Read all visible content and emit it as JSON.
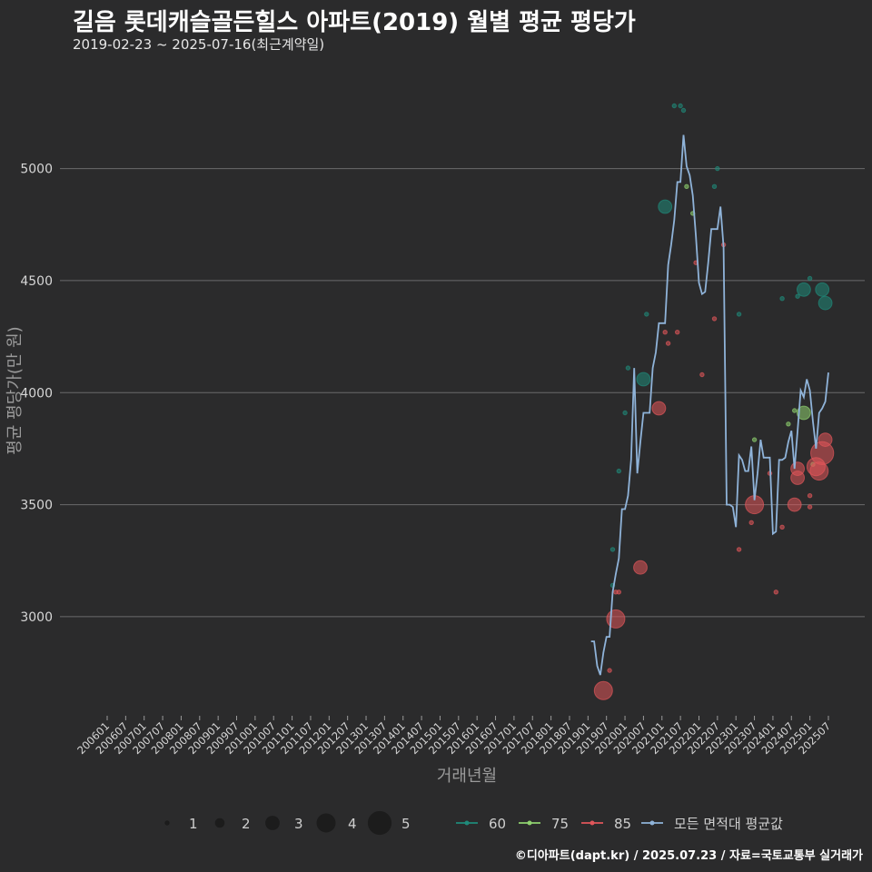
{
  "title": "길음 롯데캐슬골든힐스 아파트(2019) 월별 평균 평당가",
  "subtitle": "2019-02-23 ~ 2025-07-16(최근계약일)",
  "footer": "©디아파트(dapt.kr) / 2025.07.23 / 자료=국토교통부 실거래가",
  "colors": {
    "background": "#2b2b2c",
    "grid": "#6b6b6b",
    "area60": "#1f8a7a",
    "area75": "#8fd16f",
    "area85": "#e0565a",
    "avg": "#8fb3d9"
  },
  "chart_data": {
    "type": "line",
    "xlabel": "거래년월",
    "ylabel": "평균 평당가(만 원)",
    "ylim": [
      2570,
      5420
    ],
    "yticks": [
      3000,
      3500,
      4000,
      4500,
      5000
    ],
    "x_range": [
      "2006-01",
      "2025-07"
    ],
    "xticks": [
      "200601",
      "200607",
      "200701",
      "200707",
      "200801",
      "200807",
      "200901",
      "200907",
      "201001",
      "201007",
      "201101",
      "201107",
      "201201",
      "201207",
      "201301",
      "201307",
      "201401",
      "201407",
      "201501",
      "201507",
      "201601",
      "201607",
      "201701",
      "201707",
      "201801",
      "201807",
      "201901",
      "201907",
      "202001",
      "202007",
      "202101",
      "202107",
      "202201",
      "202207",
      "202301",
      "202307",
      "202401",
      "202407",
      "202501",
      "202507"
    ],
    "size_legend": [
      1,
      2,
      3,
      4,
      5
    ],
    "series": [
      {
        "name": "모든 면적대 평균값",
        "kind": "line",
        "points": [
          [
            "2019-02",
            2890
          ],
          [
            "2019-03",
            2890
          ],
          [
            "2019-04",
            2780
          ],
          [
            "2019-05",
            2740
          ],
          [
            "2019-06",
            2840
          ],
          [
            "2019-07",
            2910
          ],
          [
            "2019-08",
            2910
          ],
          [
            "2019-09",
            3110
          ],
          [
            "2019-10",
            3190
          ],
          [
            "2019-11",
            3260
          ],
          [
            "2019-12",
            3480
          ],
          [
            "2020-01",
            3480
          ],
          [
            "2020-02",
            3540
          ],
          [
            "2020-03",
            3700
          ],
          [
            "2020-04",
            4110
          ],
          [
            "2020-05",
            3640
          ],
          [
            "2020-06",
            3780
          ],
          [
            "2020-07",
            3910
          ],
          [
            "2020-08",
            3910
          ],
          [
            "2020-09",
            3910
          ],
          [
            "2020-10",
            4110
          ],
          [
            "2020-11",
            4180
          ],
          [
            "2020-12",
            4310
          ],
          [
            "2021-01",
            4310
          ],
          [
            "2021-02",
            4310
          ],
          [
            "2021-03",
            4570
          ],
          [
            "2021-04",
            4660
          ],
          [
            "2021-05",
            4770
          ],
          [
            "2021-06",
            4940
          ],
          [
            "2021-07",
            4940
          ],
          [
            "2021-08",
            5150
          ],
          [
            "2021-09",
            5010
          ],
          [
            "2021-10",
            4970
          ],
          [
            "2021-11",
            4880
          ],
          [
            "2021-12",
            4700
          ],
          [
            "2022-01",
            4490
          ],
          [
            "2022-02",
            4440
          ],
          [
            "2022-03",
            4450
          ],
          [
            "2022-04",
            4580
          ],
          [
            "2022-05",
            4730
          ],
          [
            "2022-06",
            4730
          ],
          [
            "2022-07",
            4730
          ],
          [
            "2022-08",
            4830
          ],
          [
            "2022-09",
            4650
          ],
          [
            "2022-10",
            3500
          ],
          [
            "2022-11",
            3500
          ],
          [
            "2022-12",
            3490
          ],
          [
            "2023-01",
            3400
          ],
          [
            "2023-02",
            3720
          ],
          [
            "2023-03",
            3700
          ],
          [
            "2023-04",
            3650
          ],
          [
            "2023-05",
            3650
          ],
          [
            "2023-06",
            3760
          ],
          [
            "2023-07",
            3520
          ],
          [
            "2023-08",
            3640
          ],
          [
            "2023-09",
            3790
          ],
          [
            "2023-10",
            3710
          ],
          [
            "2023-11",
            3710
          ],
          [
            "2023-12",
            3710
          ],
          [
            "2024-01",
            3370
          ],
          [
            "2024-02",
            3380
          ],
          [
            "2024-03",
            3700
          ],
          [
            "2024-04",
            3700
          ],
          [
            "2024-05",
            3710
          ],
          [
            "2024-06",
            3780
          ],
          [
            "2024-07",
            3830
          ],
          [
            "2024-08",
            3660
          ],
          [
            "2024-09",
            3830
          ],
          [
            "2024-10",
            4010
          ],
          [
            "2024-11",
            3980
          ],
          [
            "2024-12",
            4060
          ],
          [
            "2025-01",
            4010
          ],
          [
            "2025-02",
            3870
          ],
          [
            "2025-03",
            3750
          ],
          [
            "2025-04",
            3910
          ],
          [
            "2025-05",
            3930
          ],
          [
            "2025-06",
            3960
          ],
          [
            "2025-07",
            4090
          ]
        ]
      },
      {
        "name": "60",
        "kind": "scatter",
        "points": [
          [
            "2019-09",
            3300,
            1
          ],
          [
            "2019-09",
            3140,
            1
          ],
          [
            "2019-11",
            3650,
            1
          ],
          [
            "2020-01",
            3910,
            1
          ],
          [
            "2020-02",
            4110,
            1
          ],
          [
            "2020-07",
            4060,
            3
          ],
          [
            "2020-08",
            4350,
            1
          ],
          [
            "2021-02",
            4830,
            3
          ],
          [
            "2021-05",
            5280,
            1
          ],
          [
            "2021-07",
            5280,
            1
          ],
          [
            "2021-08",
            5260,
            1
          ],
          [
            "2022-07",
            5000,
            1
          ],
          [
            "2022-06",
            4920,
            1
          ],
          [
            "2023-02",
            4350,
            1
          ],
          [
            "2024-04",
            4420,
            1
          ],
          [
            "2024-09",
            4430,
            1
          ],
          [
            "2024-11",
            4460,
            3
          ],
          [
            "2025-01",
            4510,
            1
          ],
          [
            "2025-05",
            4460,
            3
          ],
          [
            "2025-06",
            4400,
            3
          ]
        ]
      },
      {
        "name": "75",
        "kind": "scatter",
        "points": [
          [
            "2021-11",
            4800,
            1
          ],
          [
            "2021-09",
            4920,
            1
          ],
          [
            "2023-07",
            3790,
            1
          ],
          [
            "2024-06",
            3860,
            1
          ],
          [
            "2024-08",
            3920,
            1
          ],
          [
            "2024-11",
            3910,
            3
          ],
          [
            "2025-02",
            3680,
            1
          ]
        ]
      },
      {
        "name": "85",
        "kind": "scatter",
        "points": [
          [
            "2019-10",
            3110,
            1
          ],
          [
            "2019-11",
            3110,
            1
          ],
          [
            "2019-08",
            2760,
            1
          ],
          [
            "2019-06",
            2670,
            4
          ],
          [
            "2019-10",
            2990,
            4
          ],
          [
            "2020-06",
            3220,
            3
          ],
          [
            "2020-12",
            3930,
            3
          ],
          [
            "2021-02",
            4270,
            1
          ],
          [
            "2021-03",
            4220,
            1
          ],
          [
            "2021-06",
            4270,
            1
          ],
          [
            "2021-12",
            4580,
            1
          ],
          [
            "2022-02",
            4080,
            1
          ],
          [
            "2022-06",
            4330,
            1
          ],
          [
            "2022-09",
            4660,
            1
          ],
          [
            "2023-02",
            3300,
            1
          ],
          [
            "2023-06",
            3420,
            1
          ],
          [
            "2023-07",
            3500,
            4
          ],
          [
            "2023-12",
            3640,
            1
          ],
          [
            "2024-02",
            3110,
            1
          ],
          [
            "2024-04",
            3400,
            1
          ],
          [
            "2024-08",
            3500,
            3
          ],
          [
            "2024-09",
            3660,
            3
          ],
          [
            "2024-09",
            3620,
            3
          ],
          [
            "2025-01",
            3490,
            1
          ],
          [
            "2025-01",
            3540,
            1
          ],
          [
            "2025-03",
            3670,
            4
          ],
          [
            "2025-04",
            3650,
            4
          ],
          [
            "2025-05",
            3730,
            5
          ],
          [
            "2025-06",
            3790,
            3
          ]
        ]
      }
    ]
  }
}
